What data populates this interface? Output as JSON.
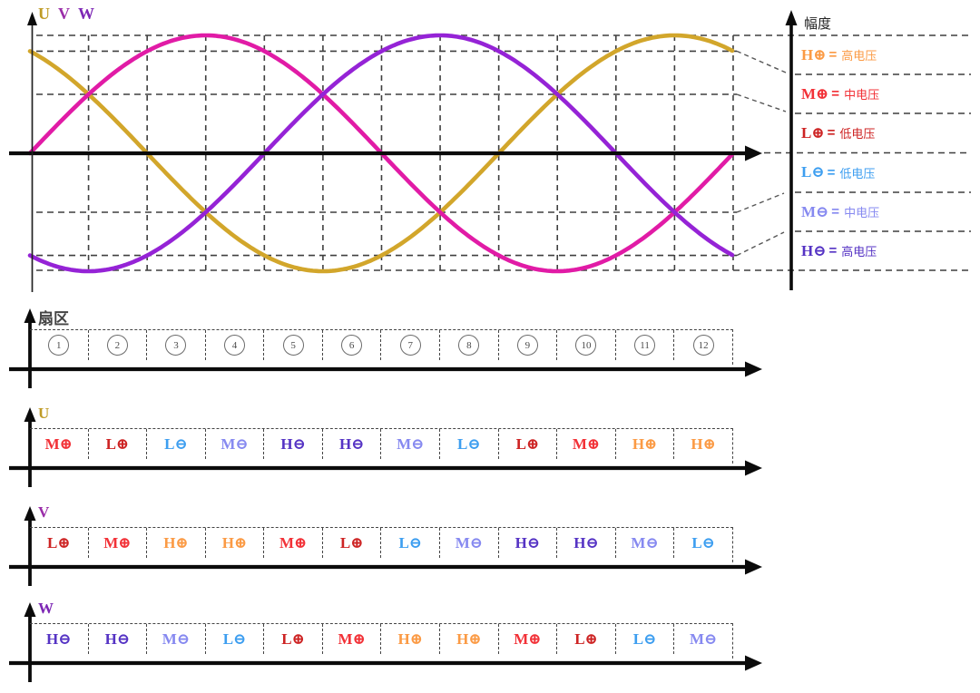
{
  "titles": {
    "u": "U",
    "v": "V",
    "w": "W"
  },
  "legend": {
    "axis_label": "幅度",
    "entries": [
      {
        "level": "H+"
      },
      {
        "level": "M+"
      },
      {
        "level": "L+"
      },
      {
        "level": "L-"
      },
      {
        "level": "M-"
      },
      {
        "level": "H-"
      }
    ],
    "equals_sign": "="
  },
  "levels": {
    "H+": {
      "symbol": "H⊕",
      "name": "高电压",
      "color": "#fb9a44"
    },
    "M+": {
      "symbol": "M⊕",
      "name": "中电压",
      "color": "#f23137"
    },
    "L+": {
      "symbol": "L⊕",
      "name": "低电压",
      "color": "#cd2323"
    },
    "L-": {
      "symbol": "L⊖",
      "name": "低电压",
      "color": "#3d9ef0"
    },
    "M-": {
      "symbol": "M⊖",
      "name": "中电压",
      "color": "#8689f0"
    },
    "H-": {
      "symbol": "H⊖",
      "name": "高电压",
      "color": "#5533c4"
    }
  },
  "sector_band": {
    "label": "扇区",
    "numbers": [
      "1",
      "2",
      "3",
      "4",
      "5",
      "6",
      "7",
      "8",
      "9",
      "10",
      "11",
      "12"
    ]
  },
  "phase_bands": [
    {
      "label": "U",
      "label_color": "#bf9b26",
      "cells": [
        "M+",
        "L+",
        "L-",
        "M-",
        "H-",
        "H-",
        "M-",
        "L-",
        "L+",
        "M+",
        "H+",
        "H+"
      ]
    },
    {
      "label": "V",
      "label_color": "#9a2da8",
      "cells": [
        "L+",
        "M+",
        "H+",
        "H+",
        "M+",
        "L+",
        "L-",
        "M-",
        "H-",
        "H-",
        "M-",
        "L-"
      ]
    },
    {
      "label": "W",
      "label_color": "#7d27b5",
      "cells": [
        "H-",
        "H-",
        "M-",
        "L-",
        "L+",
        "M+",
        "H+",
        "H+",
        "M+",
        "L+",
        "L-",
        "M-"
      ]
    }
  ],
  "chart_data": {
    "type": "line",
    "title": "",
    "ylabel": "幅度",
    "x_axis": {
      "unit": "sector",
      "sectors": 12,
      "degrees_per_sector": 30,
      "range_deg": [
        0,
        360
      ]
    },
    "series": [
      {
        "name": "U",
        "waveform": "sine",
        "amplitude": 1,
        "phase_deg": 120,
        "color": "#d2a62b"
      },
      {
        "name": "V",
        "waveform": "sine",
        "amplitude": 1,
        "phase_deg": 0,
        "color": "#e11ba6"
      },
      {
        "name": "W",
        "waveform": "sine",
        "amplitude": 1,
        "phase_deg": -120,
        "color": "#9523d6"
      }
    ],
    "horizontal_gridline_levels": [
      1,
      0.866,
      0.5,
      0,
      -0.5,
      -0.866,
      -1
    ],
    "amplitude_bands_top_to_bottom": [
      "H+",
      "M+",
      "L+",
      "L-",
      "M-",
      "H-"
    ],
    "sector_level_table": {
      "U": [
        "M+",
        "L+",
        "L-",
        "M-",
        "H-",
        "H-",
        "M-",
        "L-",
        "L+",
        "M+",
        "H+",
        "H+"
      ],
      "V": [
        "L+",
        "M+",
        "H+",
        "H+",
        "M+",
        "L+",
        "L-",
        "M-",
        "H-",
        "H-",
        "M-",
        "L-"
      ],
      "W": [
        "H-",
        "H-",
        "M-",
        "L-",
        "L+",
        "M+",
        "H+",
        "H+",
        "M+",
        "L+",
        "L-",
        "M-"
      ]
    },
    "legend_position": "right",
    "grid": true
  }
}
